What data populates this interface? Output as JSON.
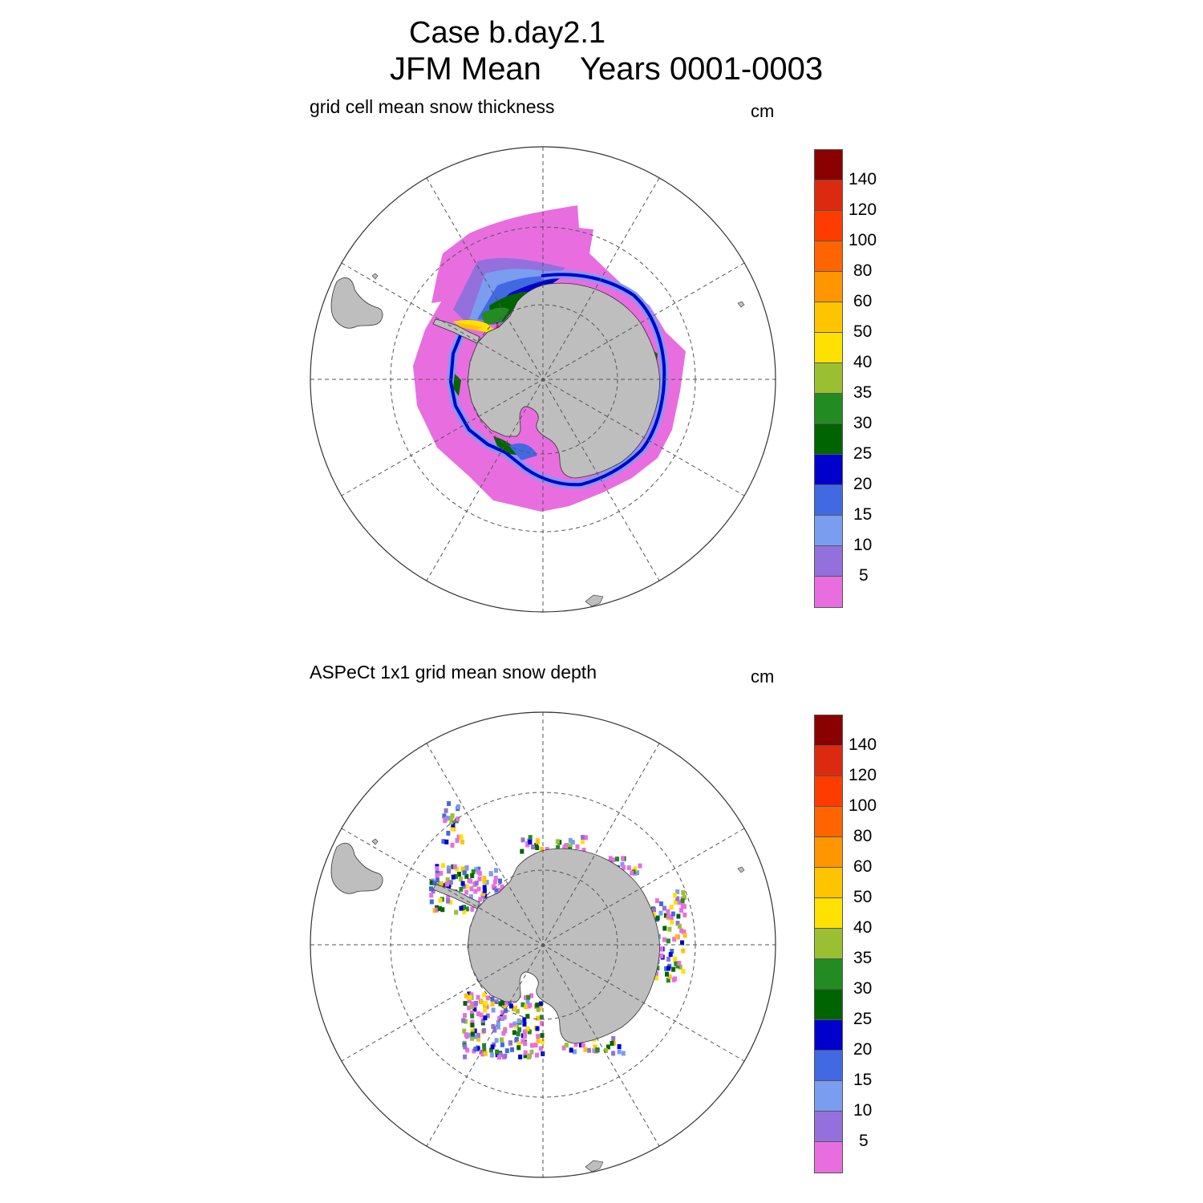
{
  "title": {
    "line1": "Case b.day2.1",
    "line2a": "JFM Mean",
    "line2b": "Years 0001-0003"
  },
  "panels": [
    {
      "subtitle": "grid cell mean snow thickness",
      "unit": "cm"
    },
    {
      "subtitle": "ASPeCt 1x1 grid mean snow depth",
      "unit": "cm"
    }
  ],
  "colorbar": {
    "colors": [
      "#8b0000",
      "#dc2a10",
      "#ff3c00",
      "#ff6400",
      "#ff9600",
      "#ffc400",
      "#ffe100",
      "#9ac032",
      "#228b22",
      "#006400",
      "#0000cd",
      "#4169e1",
      "#7b9df0",
      "#9370db",
      "#e86ee0"
    ],
    "labels": [
      "140",
      "120",
      "100",
      "80",
      "60",
      "50",
      "40",
      "35",
      "30",
      "25",
      "20",
      "15",
      "10",
      "5"
    ]
  },
  "land_color": "#bebebe"
}
